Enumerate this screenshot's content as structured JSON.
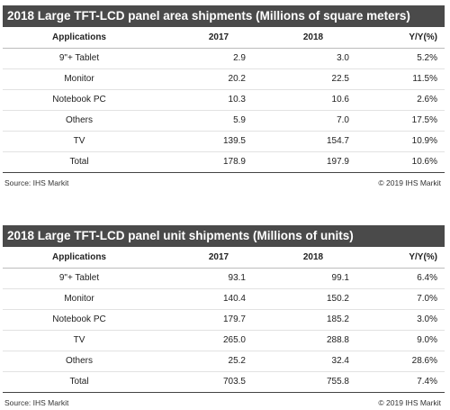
{
  "tables": [
    {
      "title": "2018 Large TFT-LCD panel area shipments (Millions of square meters)",
      "columns": [
        "Applications",
        "2017",
        "2018",
        "Y/Y(%)"
      ],
      "rows": [
        {
          "app": "9\"+ Tablet",
          "y2017": "2.9",
          "y2018": "3.0",
          "yy": "5.2%"
        },
        {
          "app": "Monitor",
          "y2017": "20.2",
          "y2018": "22.5",
          "yy": "11.5%"
        },
        {
          "app": "Notebook PC",
          "y2017": "10.3",
          "y2018": "10.6",
          "yy": "2.6%"
        },
        {
          "app": "Others",
          "y2017": "5.9",
          "y2018": "7.0",
          "yy": "17.5%"
        },
        {
          "app": "TV",
          "y2017": "139.5",
          "y2018": "154.7",
          "yy": "10.9%"
        },
        {
          "app": "Total",
          "y2017": "178.9",
          "y2018": "197.9",
          "yy": "10.6%"
        }
      ],
      "source": "Source: IHS Markit",
      "copyright": "© 2019 IHS Markit"
    },
    {
      "title": "2018 Large TFT-LCD panel unit shipments (Millions of units)",
      "columns": [
        "Applications",
        "2017",
        "2018",
        "Y/Y(%)"
      ],
      "rows": [
        {
          "app": "9\"+ Tablet",
          "y2017": "93.1",
          "y2018": "99.1",
          "yy": "6.4%"
        },
        {
          "app": "Monitor",
          "y2017": "140.4",
          "y2018": "150.2",
          "yy": "7.0%"
        },
        {
          "app": "Notebook PC",
          "y2017": "179.7",
          "y2018": "185.2",
          "yy": "3.0%"
        },
        {
          "app": "TV",
          "y2017": "265.0",
          "y2018": "288.8",
          "yy": "9.0%"
        },
        {
          "app": "Others",
          "y2017": "25.2",
          "y2018": "32.4",
          "yy": "28.6%"
        },
        {
          "app": "Total",
          "y2017": "703.5",
          "y2018": "755.8",
          "yy": "7.4%"
        }
      ],
      "source": "Source: IHS Markit",
      "copyright": "© 2019 IHS Markit"
    }
  ]
}
